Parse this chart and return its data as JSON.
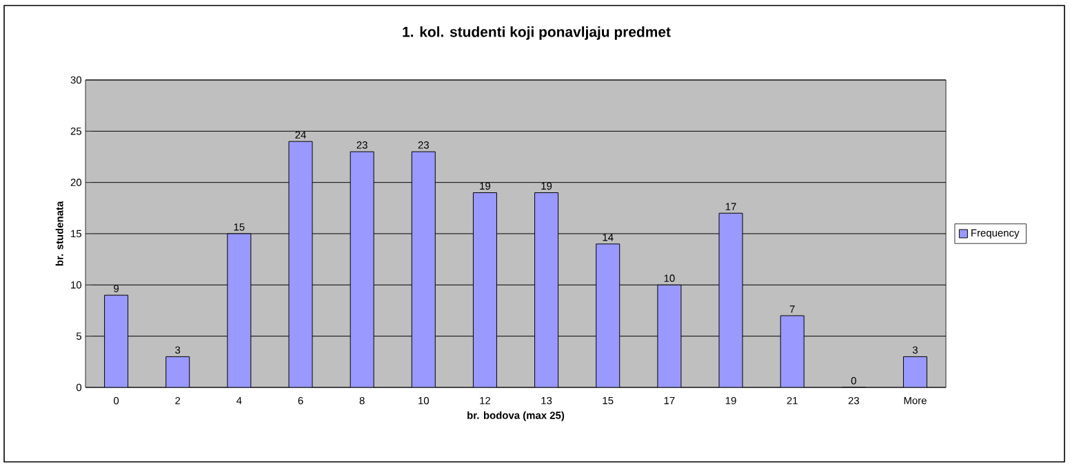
{
  "chart_data": {
    "type": "bar",
    "title": "1. kol. studenti koji  ponavljaju predmet",
    "xlabel": "br. bodova (max 25)",
    "ylabel": "br. studenata",
    "categories": [
      "0",
      "2",
      "4",
      "6",
      "8",
      "10",
      "12",
      "13",
      "15",
      "17",
      "19",
      "21",
      "23",
      "More"
    ],
    "series": [
      {
        "name": "Frequency",
        "color": "#9999ff",
        "values": [
          9,
          3,
          15,
          24,
          23,
          23,
          19,
          19,
          14,
          10,
          17,
          7,
          0,
          3
        ]
      }
    ],
    "ylim": [
      0,
      30
    ],
    "yticks": [
      0,
      5,
      10,
      15,
      20,
      25,
      30
    ],
    "grid": "y",
    "legend": "right",
    "data_labels": true
  }
}
